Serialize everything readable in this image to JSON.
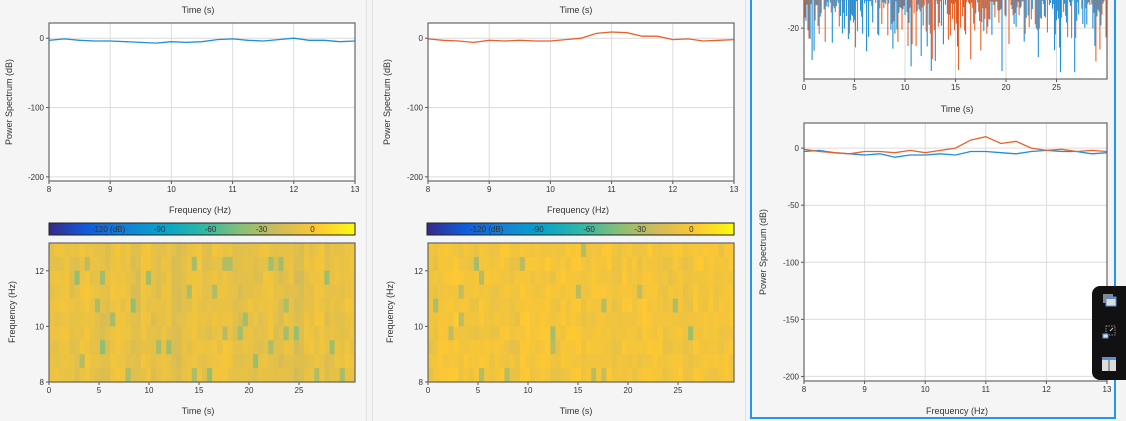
{
  "colors": {
    "series_a": "#1f8fd8",
    "series_b": "#e8622a",
    "panel_border_active": "#2196f3",
    "grid": "#dcdcdc"
  },
  "chart_data": [
    {
      "id": "p1-spectrum",
      "type": "line",
      "title": "Time (s)",
      "xlabel": "Frequency (Hz)",
      "ylabel": "Power Spectrum (dB)",
      "xlim": [
        8,
        13
      ],
      "ylim": [
        -206,
        22
      ],
      "xticks": [
        8,
        9,
        10,
        11,
        12,
        13
      ],
      "yticks": [
        0,
        -100,
        -200
      ],
      "grid": true,
      "series": [
        {
          "color": "#1f8fd8",
          "x": [
            8,
            8.25,
            8.5,
            8.75,
            9,
            9.25,
            9.5,
            9.75,
            10,
            10.25,
            10.5,
            10.75,
            11,
            11.25,
            11.5,
            11.75,
            12,
            12.25,
            12.5,
            12.75,
            13
          ],
          "y": [
            -3,
            -1,
            -3,
            -4,
            -4,
            -5,
            -6,
            -7,
            -5,
            -6,
            -5,
            -2,
            -1,
            -3,
            -4,
            -2,
            0,
            -3,
            -3,
            -5,
            -4
          ]
        }
      ]
    },
    {
      "id": "p1-spectrogram",
      "type": "heatmap",
      "xlabel": "Time (s)",
      "ylabel": "Frequency (Hz)",
      "xlim": [
        0,
        30.6
      ],
      "ylim": [
        8,
        13
      ],
      "xticks": [
        0,
        5,
        10,
        15,
        20,
        25
      ],
      "yticks": [
        8,
        10,
        12
      ],
      "colorbar": {
        "colormap": "parula",
        "clim": [
          -155,
          25
        ],
        "ticks": [
          -120,
          -90,
          -60,
          -30,
          0
        ],
        "tick_labels": [
          "-120 (dB)",
          "-90",
          "-60",
          "-30",
          "0"
        ]
      },
      "column_levels_db": [
        -8,
        -6,
        -10,
        -4,
        -9,
        -12,
        -5,
        -7,
        -14,
        -6,
        -11,
        -8,
        -15,
        -9,
        -6,
        -10,
        -7,
        -5,
        -13,
        -8,
        -10,
        -6,
        -12,
        -9,
        -16,
        -7,
        -5,
        -11,
        -8,
        -6
      ]
    },
    {
      "id": "p2-spectrum",
      "type": "line",
      "title": "Time (s)",
      "xlabel": "Frequency (Hz)",
      "ylabel": "Power Spectrum (dB)",
      "xlim": [
        8,
        13
      ],
      "ylim": [
        -206,
        22
      ],
      "xticks": [
        8,
        9,
        10,
        11,
        12,
        13
      ],
      "yticks": [
        0,
        -100,
        -200
      ],
      "grid": true,
      "series": [
        {
          "color": "#e8622a",
          "x": [
            8,
            8.25,
            8.5,
            8.75,
            9,
            9.25,
            9.5,
            9.75,
            10,
            10.25,
            10.5,
            10.75,
            11,
            11.25,
            11.5,
            11.75,
            12,
            12.25,
            12.5,
            12.75,
            13
          ],
          "y": [
            -1,
            -3,
            -4,
            -6,
            -3,
            -4,
            -3,
            -4,
            -4,
            -2,
            0,
            7,
            9,
            8,
            3,
            3,
            -2,
            -1,
            -4,
            -3,
            -2
          ]
        }
      ]
    },
    {
      "id": "p2-spectrogram",
      "type": "heatmap",
      "xlabel": "Time (s)",
      "ylabel": "Frequency (Hz)",
      "xlim": [
        0,
        30.6
      ],
      "ylim": [
        8,
        13
      ],
      "xticks": [
        0,
        5,
        10,
        15,
        20,
        25
      ],
      "yticks": [
        8,
        10,
        12
      ],
      "colorbar": {
        "colormap": "parula",
        "clim": [
          -155,
          25
        ],
        "ticks": [
          -120,
          -90,
          -60,
          -30,
          0
        ],
        "tick_labels": [
          "-120 (dB)",
          "-90",
          "-60",
          "-30",
          "0"
        ]
      },
      "column_levels_db": [
        -6,
        -2,
        0,
        -3,
        -5,
        -1,
        -4,
        -2,
        -6,
        0,
        -3,
        -1,
        -5,
        -2,
        0,
        -4,
        -3,
        -1,
        -6,
        -2,
        -4,
        -1,
        -3,
        -5,
        -2,
        -6,
        -1,
        -3,
        -4,
        -2
      ]
    },
    {
      "id": "p3-time",
      "type": "line",
      "xlabel": "Time (s)",
      "xlim": [
        0,
        30
      ],
      "ylim": [
        -40,
        -5
      ],
      "xticks": [
        0,
        5,
        10,
        15,
        20,
        25
      ],
      "yticks": [
        -20
      ],
      "grid": true,
      "series": [
        {
          "color": "#1f8fd8"
        },
        {
          "color": "#e8622a"
        }
      ]
    },
    {
      "id": "p3-spectrum",
      "type": "line",
      "xlabel": "Frequency (Hz)",
      "ylabel": "Power Spectrum (dB)",
      "xlim": [
        8,
        13
      ],
      "ylim": [
        -204,
        22
      ],
      "xticks": [
        8,
        9,
        10,
        11,
        12,
        13
      ],
      "yticks": [
        0,
        -50,
        -100,
        -150,
        -200
      ],
      "grid": true,
      "series": [
        {
          "color": "#1f8fd8",
          "x": [
            8,
            8.25,
            8.5,
            8.75,
            9,
            9.25,
            9.5,
            9.75,
            10,
            10.25,
            10.5,
            10.75,
            11,
            11.25,
            11.5,
            11.75,
            12,
            12.25,
            12.5,
            12.75,
            13
          ],
          "y": [
            -3,
            -2,
            -4,
            -5,
            -6,
            -5,
            -8,
            -6,
            -6,
            -5,
            -6,
            -3,
            -3,
            -4,
            -5,
            -3,
            -2,
            -3,
            -3,
            -5,
            -4
          ]
        },
        {
          "color": "#e8622a",
          "x": [
            8,
            8.25,
            8.5,
            8.75,
            9,
            9.25,
            9.5,
            9.75,
            10,
            10.25,
            10.5,
            10.75,
            11,
            11.25,
            11.5,
            11.75,
            12,
            12.25,
            12.5,
            12.75,
            13
          ],
          "y": [
            -1,
            -3,
            -4,
            -5,
            -3,
            -3,
            -4,
            -2,
            -4,
            -2,
            0,
            7,
            10,
            4,
            6,
            0,
            -2,
            -1,
            -3,
            -2,
            -3
          ]
        }
      ]
    }
  ],
  "labels": {
    "time": "Time (s)",
    "frequency_hz": "Frequency (Hz)",
    "power_spectrum": "Power Spectrum (dB)"
  },
  "toolbar": {
    "icons": [
      "window-stack-icon",
      "resize-icon",
      "split-layout-icon"
    ]
  }
}
